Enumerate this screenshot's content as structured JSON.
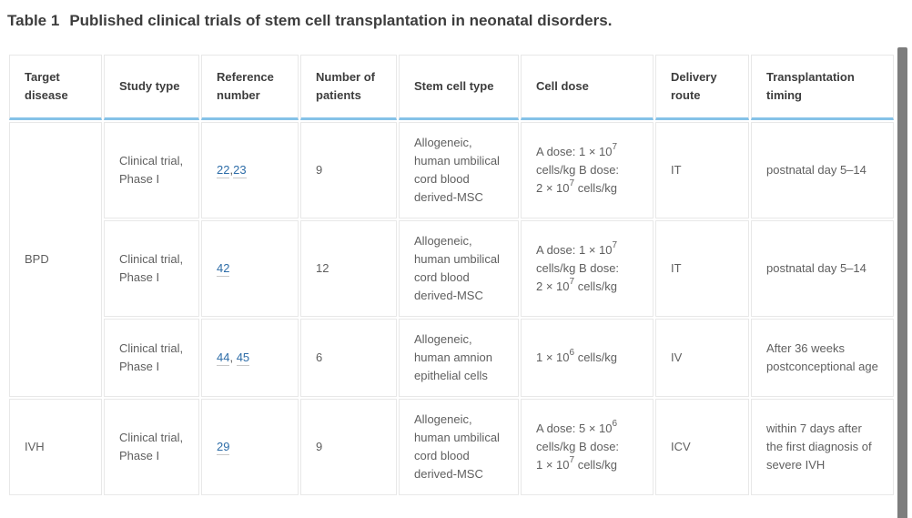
{
  "title": {
    "label": "Table 1",
    "text": "Published clinical trials of stem cell transplantation in neonatal disorders."
  },
  "table": {
    "columns": [
      "Target disease",
      "Study type",
      "Reference number",
      "Number of patients",
      "Stem cell type",
      "Cell dose",
      "Delivery route",
      "Transplantation timing"
    ],
    "groups": [
      {
        "disease": "BPD",
        "rows": [
          {
            "study_type": "Clinical trial, Phase I",
            "references": [
              "22",
              "23"
            ],
            "ref_separator": ",",
            "patients": "9",
            "stem_cell_type": "Allogeneic, human umbilical cord blood derived-MSC",
            "cell_dose": "A dose: 1 × 10^7\ncells/kg B dose:\n2 × 10^7 cells/kg",
            "delivery_route": "IT",
            "timing": "postnatal day 5–14"
          },
          {
            "study_type": "Clinical trial, Phase I",
            "references": [
              "42"
            ],
            "ref_separator": ",",
            "patients": "12",
            "stem_cell_type": "Allogeneic, human umbilical cord blood derived-MSC",
            "cell_dose": "A dose: 1 × 10^7\ncells/kg B dose:\n2 × 10^7 cells/kg",
            "delivery_route": "IT",
            "timing": "postnatal day 5–14"
          },
          {
            "study_type": "Clinical trial, Phase I",
            "references": [
              "44",
              "45"
            ],
            "ref_separator": ", ",
            "patients": "6",
            "stem_cell_type": "Allogeneic, human amnion epithelial cells",
            "cell_dose": "1 × 10^6 cells/kg",
            "delivery_route": "IV",
            "timing": "After 36 weeks postconceptional age"
          }
        ]
      },
      {
        "disease": "IVH",
        "rows": [
          {
            "study_type": "Clinical trial, Phase I",
            "references": [
              "29"
            ],
            "ref_separator": ",",
            "patients": "9",
            "stem_cell_type": "Allogeneic, human umbilical cord blood derived-MSC",
            "cell_dose": "A dose: 5 × 10^6\ncells/kg B dose:\n1 × 10^7 cells/kg",
            "delivery_route": "ICV",
            "timing": "within 7 days after the first diagnosis of severe IVH"
          }
        ]
      }
    ]
  },
  "colors": {
    "header_underline": "#85c2e8",
    "link": "#2e6da8",
    "scrollbar_thumb": "#7d7d7d"
  }
}
